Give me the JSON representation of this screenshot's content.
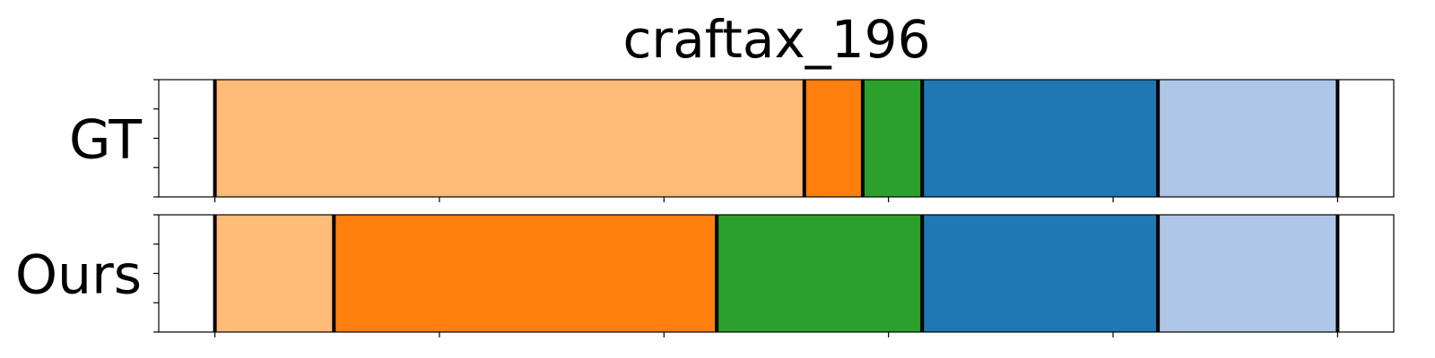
{
  "chart_data": {
    "type": "bar",
    "title": "craftax_196",
    "xlim": [
      -5,
      105
    ],
    "x_ticks": [
      0,
      20,
      40,
      60,
      80,
      100
    ],
    "y_ticks_per_row": 5,
    "grid": false,
    "rows": [
      {
        "label": "GT",
        "segments": [
          {
            "start": 0,
            "end": 52.5,
            "color": "#ffbb78"
          },
          {
            "start": 52.5,
            "end": 57.7,
            "color": "#ff7f0e"
          },
          {
            "start": 57.7,
            "end": 63.0,
            "color": "#2ca02c"
          },
          {
            "start": 63.0,
            "end": 84.0,
            "color": "#1f77b4"
          },
          {
            "start": 84.0,
            "end": 100,
            "color": "#aec7e8"
          }
        ]
      },
      {
        "label": "Ours",
        "segments": [
          {
            "start": 0,
            "end": 10.6,
            "color": "#ffbb78"
          },
          {
            "start": 10.6,
            "end": 44.7,
            "color": "#ff7f0e"
          },
          {
            "start": 44.7,
            "end": 63.0,
            "color": "#2ca02c"
          },
          {
            "start": 63.0,
            "end": 84.0,
            "color": "#1f77b4"
          },
          {
            "start": 84.0,
            "end": 100,
            "color": "#aec7e8"
          }
        ]
      }
    ]
  }
}
